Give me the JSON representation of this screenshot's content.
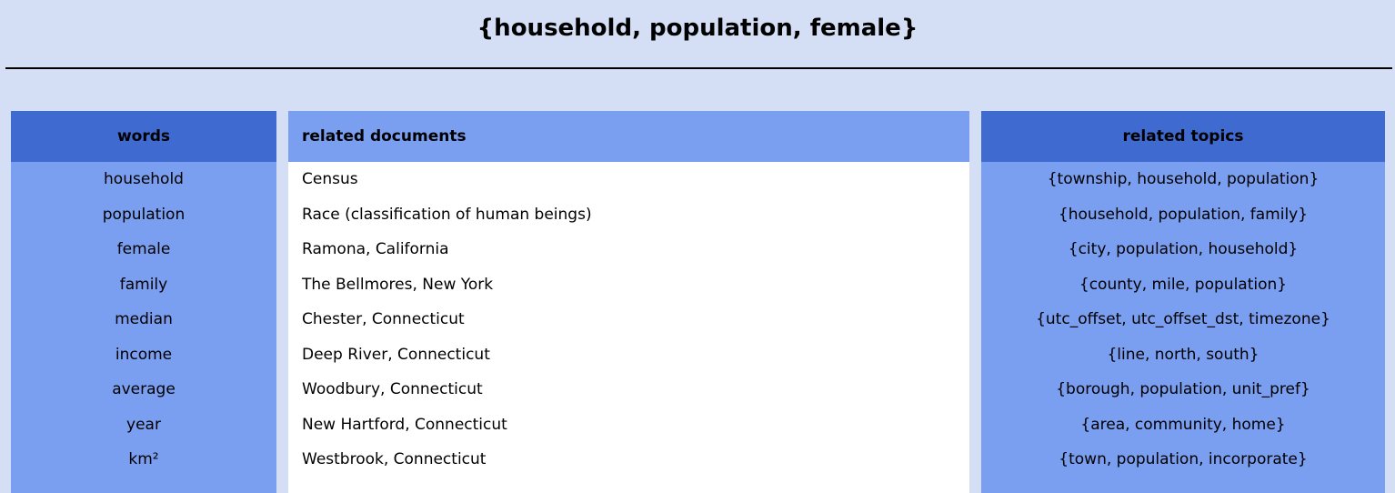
{
  "page": {
    "title": "{household, population, female}"
  },
  "words": {
    "header": "words",
    "items": [
      "household",
      "population",
      "female",
      "family",
      "median",
      "income",
      "average",
      "year",
      "km²"
    ]
  },
  "documents": {
    "header": "related documents",
    "items": [
      "Census",
      "Race (classification of human beings)",
      "Ramona, California",
      "The Bellmores, New York",
      "Chester, Connecticut",
      "Deep River, Connecticut",
      "Woodbury, Connecticut",
      "New Hartford, Connecticut",
      "Westbrook, Connecticut"
    ]
  },
  "topics": {
    "header": "related topics",
    "items": [
      "{township, household, population}",
      "{household, population, family}",
      "{city, population, household}",
      "{county, mile, population}",
      "{utc_offset, utc_offset_dst, timezone}",
      "{line, north, south}",
      "{borough, population, unit_pref}",
      "{area, community, home}",
      "{town, population, incorporate}"
    ]
  },
  "colors": {
    "background": "#d4dff6",
    "header_dark": "#3f6ad0",
    "panel_light": "#7a9ef0",
    "docs_background": "#ffffff"
  }
}
